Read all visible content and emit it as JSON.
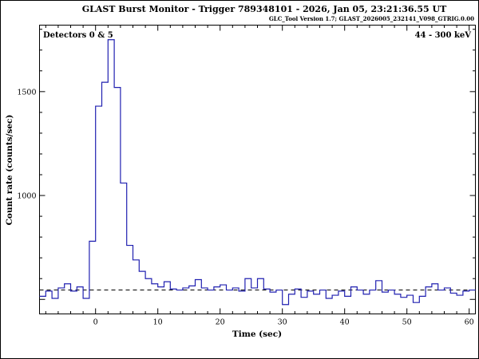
{
  "header": {
    "title": "GLAST Burst Monitor  -  Trigger 789348101  -  2026, Jan 05, 23:21:36.55 UT",
    "subtitle": "GLC_Tool Version 1.7; GLAST_2026005_232141_V098_GTRIG.0.00"
  },
  "chart_data": {
    "type": "line",
    "style": "step-histogram",
    "title": "GLAST Burst Monitor  -  Trigger 789348101  -  2026, Jan 05, 23:21:36.55 UT",
    "subtitle": "GLC_Tool Version 1.7; GLAST_2026005_232141_V098_GTRIG.0.00",
    "xlabel": "Time (sec)",
    "ylabel": "Count rate (counts/sec)",
    "xlim": [
      -9,
      61
    ],
    "ylim": [
      430,
      1820
    ],
    "x_tick_labels": [
      0,
      10,
      20,
      30,
      40,
      50,
      60
    ],
    "x_minor_step": 2,
    "y_major_ticks": [
      500,
      1000,
      1500
    ],
    "y_tick_labels": [
      1000,
      1500
    ],
    "y_minor_step": 100,
    "grid": false,
    "legend_position": "none",
    "annotations": [
      {
        "text": "Detectors 0 & 5",
        "pos": "top-left"
      },
      {
        "text": "44 - 300 keV",
        "pos": "top-right"
      }
    ],
    "background_rate": 545,
    "line_color": "#2020b0",
    "background_line_color": "#000000",
    "bin_start": -9,
    "bin_width": 1,
    "rates": [
      515,
      540,
      505,
      555,
      575,
      540,
      560,
      505,
      780,
      1430,
      1545,
      1750,
      1520,
      1060,
      760,
      690,
      635,
      600,
      575,
      560,
      585,
      550,
      545,
      555,
      565,
      595,
      555,
      545,
      560,
      570,
      545,
      555,
      540,
      600,
      555,
      600,
      550,
      535,
      545,
      475,
      525,
      550,
      510,
      540,
      525,
      545,
      505,
      520,
      540,
      515,
      560,
      545,
      525,
      545,
      590,
      535,
      545,
      525,
      510,
      520,
      485,
      515,
      560,
      575,
      545,
      555,
      530,
      520,
      540,
      545
    ]
  }
}
